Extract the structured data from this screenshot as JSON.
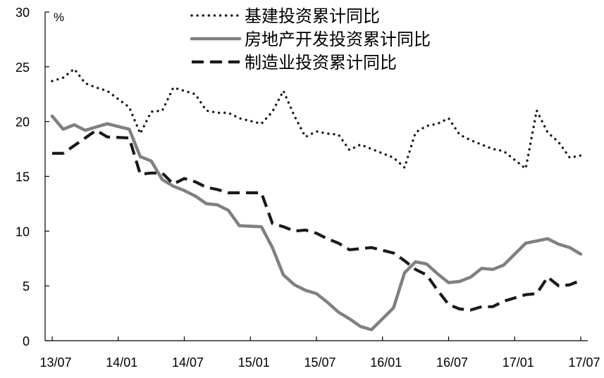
{
  "chart_data": {
    "type": "line",
    "ylabel": "%",
    "ylim": [
      0,
      30
    ],
    "yticks": [
      "0",
      "5",
      "10",
      "15",
      "20",
      "25",
      "30"
    ],
    "xlim": [
      "2013-07",
      "2017-07"
    ],
    "xticks": [
      {
        "label": "13/07",
        "date": "2013-07"
      },
      {
        "label": "14/01",
        "date": "2014-01"
      },
      {
        "label": "14/07",
        "date": "2014-07"
      },
      {
        "label": "15/01",
        "date": "2015-01"
      },
      {
        "label": "15/07",
        "date": "2015-07"
      },
      {
        "label": "16/01",
        "date": "2016-01"
      },
      {
        "label": "16/07",
        "date": "2016-07"
      },
      {
        "label": "17/01",
        "date": "2017-01"
      },
      {
        "label": "17/07",
        "date": "2017-07"
      }
    ],
    "legend_position": "top",
    "grid": false,
    "series": [
      {
        "name": "基建投资累计同比",
        "style": "dotted",
        "color": "#1a1a1a",
        "points": [
          [
            "2013-07",
            23.7
          ],
          [
            "2013-08",
            24.0
          ],
          [
            "2013-09",
            24.8
          ],
          [
            "2013-10",
            23.5
          ],
          [
            "2013-11",
            23.1
          ],
          [
            "2013-12",
            22.8
          ],
          [
            "2014-02",
            21.3
          ],
          [
            "2014-03",
            18.9
          ],
          [
            "2014-04",
            20.9
          ],
          [
            "2014-05",
            21.0
          ],
          [
            "2014-06",
            23.1
          ],
          [
            "2014-07",
            22.8
          ],
          [
            "2014-08",
            22.5
          ],
          [
            "2014-09",
            21.0
          ],
          [
            "2014-10",
            20.8
          ],
          [
            "2014-11",
            20.8
          ],
          [
            "2014-12",
            20.3
          ],
          [
            "2015-02",
            19.8
          ],
          [
            "2015-03",
            20.9
          ],
          [
            "2015-04",
            22.8
          ],
          [
            "2015-05",
            20.5
          ],
          [
            "2015-06",
            18.6
          ],
          [
            "2015-07",
            19.1
          ],
          [
            "2015-08",
            18.9
          ],
          [
            "2015-09",
            18.8
          ],
          [
            "2015-10",
            17.4
          ],
          [
            "2015-11",
            17.9
          ],
          [
            "2015-12",
            17.5
          ],
          [
            "2016-02",
            16.7
          ],
          [
            "2016-03",
            15.8
          ],
          [
            "2016-04",
            19.0
          ],
          [
            "2016-05",
            19.6
          ],
          [
            "2016-06",
            19.8
          ],
          [
            "2016-07",
            20.3
          ],
          [
            "2016-08",
            18.8
          ],
          [
            "2016-09",
            18.3
          ],
          [
            "2016-10",
            17.9
          ],
          [
            "2016-11",
            17.5
          ],
          [
            "2016-12",
            17.3
          ],
          [
            "2017-02",
            15.7
          ],
          [
            "2017-03",
            21.0
          ],
          [
            "2017-04",
            19.0
          ],
          [
            "2017-05",
            18.1
          ],
          [
            "2017-06",
            16.7
          ],
          [
            "2017-07",
            16.9
          ]
        ]
      },
      {
        "name": "房地产开发投资累计同比",
        "style": "solid",
        "color": "#808080",
        "points": [
          [
            "2013-07",
            20.5
          ],
          [
            "2013-08",
            19.3
          ],
          [
            "2013-09",
            19.7
          ],
          [
            "2013-10",
            19.2
          ],
          [
            "2013-11",
            19.5
          ],
          [
            "2013-12",
            19.8
          ],
          [
            "2014-02",
            19.3
          ],
          [
            "2014-03",
            16.8
          ],
          [
            "2014-04",
            16.4
          ],
          [
            "2014-05",
            14.7
          ],
          [
            "2014-06",
            14.1
          ],
          [
            "2014-07",
            13.7
          ],
          [
            "2014-08",
            13.2
          ],
          [
            "2014-09",
            12.5
          ],
          [
            "2014-10",
            12.4
          ],
          [
            "2014-11",
            11.9
          ],
          [
            "2014-12",
            10.5
          ],
          [
            "2015-02",
            10.4
          ],
          [
            "2015-03",
            8.5
          ],
          [
            "2015-04",
            6.0
          ],
          [
            "2015-05",
            5.1
          ],
          [
            "2015-06",
            4.6
          ],
          [
            "2015-07",
            4.3
          ],
          [
            "2015-08",
            3.5
          ],
          [
            "2015-09",
            2.6
          ],
          [
            "2015-10",
            2.0
          ],
          [
            "2015-11",
            1.3
          ],
          [
            "2015-12",
            1.0
          ],
          [
            "2016-02",
            3.0
          ],
          [
            "2016-03",
            6.2
          ],
          [
            "2016-04",
            7.2
          ],
          [
            "2016-05",
            7.0
          ],
          [
            "2016-06",
            6.1
          ],
          [
            "2016-07",
            5.3
          ],
          [
            "2016-08",
            5.4
          ],
          [
            "2016-09",
            5.8
          ],
          [
            "2016-10",
            6.6
          ],
          [
            "2016-11",
            6.5
          ],
          [
            "2016-12",
            6.9
          ],
          [
            "2017-02",
            8.9
          ],
          [
            "2017-03",
            9.1
          ],
          [
            "2017-04",
            9.3
          ],
          [
            "2017-05",
            8.8
          ],
          [
            "2017-06",
            8.5
          ],
          [
            "2017-07",
            7.9
          ]
        ]
      },
      {
        "name": "制造业投资累计同比",
        "style": "dashed",
        "color": "#1a1a1a",
        "points": [
          [
            "2013-07",
            17.1
          ],
          [
            "2013-08",
            17.1
          ],
          [
            "2013-09",
            17.8
          ],
          [
            "2013-10",
            18.5
          ],
          [
            "2013-11",
            19.2
          ],
          [
            "2013-12",
            18.6
          ],
          [
            "2014-02",
            18.5
          ],
          [
            "2014-03",
            15.2
          ],
          [
            "2014-04",
            15.3
          ],
          [
            "2014-05",
            15.3
          ],
          [
            "2014-06",
            14.3
          ],
          [
            "2014-07",
            14.8
          ],
          [
            "2014-08",
            14.5
          ],
          [
            "2014-09",
            14.0
          ],
          [
            "2014-10",
            13.8
          ],
          [
            "2014-11",
            13.5
          ],
          [
            "2014-12",
            13.5
          ],
          [
            "2015-02",
            13.5
          ],
          [
            "2015-03",
            10.7
          ],
          [
            "2015-04",
            10.4
          ],
          [
            "2015-05",
            10.0
          ],
          [
            "2015-06",
            10.1
          ],
          [
            "2015-07",
            9.8
          ],
          [
            "2015-08",
            9.3
          ],
          [
            "2015-09",
            8.9
          ],
          [
            "2015-10",
            8.3
          ],
          [
            "2015-11",
            8.4
          ],
          [
            "2015-12",
            8.5
          ],
          [
            "2016-02",
            8.0
          ],
          [
            "2016-03",
            7.3
          ],
          [
            "2016-04",
            6.5
          ],
          [
            "2016-05",
            6.0
          ],
          [
            "2016-06",
            4.6
          ],
          [
            "2016-07",
            3.3
          ],
          [
            "2016-08",
            2.9
          ],
          [
            "2016-09",
            2.8
          ],
          [
            "2016-10",
            3.1
          ],
          [
            "2016-11",
            3.1
          ],
          [
            "2016-12",
            3.6
          ],
          [
            "2017-02",
            4.2
          ],
          [
            "2017-03",
            4.3
          ],
          [
            "2017-04",
            5.8
          ],
          [
            "2017-05",
            5.0
          ],
          [
            "2017-06",
            5.1
          ],
          [
            "2017-07",
            5.5
          ]
        ]
      }
    ]
  }
}
